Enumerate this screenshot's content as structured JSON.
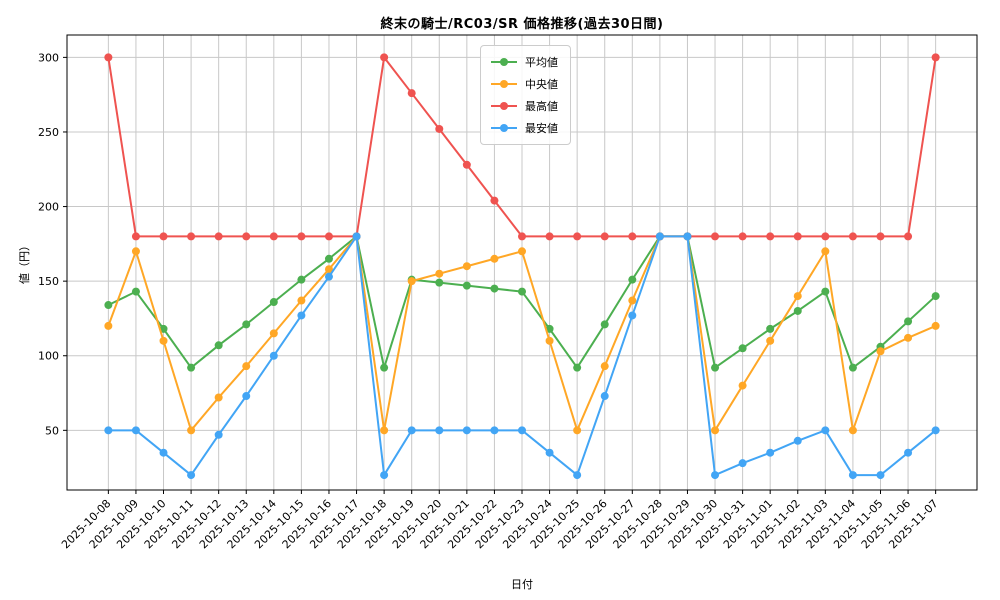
{
  "chart_data": {
    "type": "line",
    "title": "終末の騎士/RC03/SR 価格推移(過去30日間)",
    "xlabel": "日付",
    "ylabel": "値（円）",
    "grid": true,
    "grid_color": "#c8c8c8",
    "legend_position": "upper center",
    "marker": "circle",
    "ylim": [
      10,
      315
    ],
    "yticks": [
      50,
      100,
      150,
      200,
      250,
      300
    ],
    "categories": [
      "2025-10-08",
      "2025-10-09",
      "2025-10-10",
      "2025-10-11",
      "2025-10-12",
      "2025-10-13",
      "2025-10-14",
      "2025-10-15",
      "2025-10-16",
      "2025-10-17",
      "2025-10-18",
      "2025-10-19",
      "2025-10-20",
      "2025-10-21",
      "2025-10-22",
      "2025-10-23",
      "2025-10-24",
      "2025-10-25",
      "2025-10-26",
      "2025-10-27",
      "2025-10-28",
      "2025-10-29",
      "2025-10-30",
      "2025-10-31",
      "2025-11-01",
      "2025-11-02",
      "2025-11-03",
      "2025-11-04",
      "2025-11-05",
      "2025-11-06",
      "2025-11-07"
    ],
    "series": [
      {
        "key": "average",
        "name": "平均値",
        "color": "#4caf50",
        "values": [
          134,
          143,
          118,
          92,
          107,
          121,
          136,
          151,
          165,
          180,
          92,
          151,
          149,
          147,
          145,
          143,
          118,
          92,
          121,
          151,
          180,
          180,
          92,
          105,
          118,
          130,
          143,
          92,
          106,
          123,
          140
        ]
      },
      {
        "key": "median",
        "name": "中央値",
        "color": "#ffa726",
        "values": [
          120,
          170,
          110,
          50,
          72,
          93,
          115,
          137,
          158,
          180,
          50,
          150,
          155,
          160,
          165,
          170,
          110,
          50,
          93,
          137,
          180,
          180,
          50,
          80,
          110,
          140,
          170,
          50,
          103,
          112,
          120
        ]
      },
      {
        "key": "max",
        "name": "最高値",
        "color": "#ef5350",
        "values": [
          300,
          180,
          180,
          180,
          180,
          180,
          180,
          180,
          180,
          180,
          300,
          276,
          252,
          228,
          204,
          180,
          180,
          180,
          180,
          180,
          180,
          180,
          180,
          180,
          180,
          180,
          180,
          180,
          180,
          180,
          300
        ]
      },
      {
        "key": "min",
        "name": "最安値",
        "color": "#42a5f5",
        "values": [
          50,
          50,
          35,
          20,
          47,
          73,
          100,
          127,
          153,
          180,
          20,
          50,
          50,
          50,
          50,
          50,
          35,
          20,
          73,
          127,
          180,
          180,
          20,
          28,
          35,
          43,
          50,
          20,
          20,
          35,
          50
        ]
      }
    ]
  }
}
